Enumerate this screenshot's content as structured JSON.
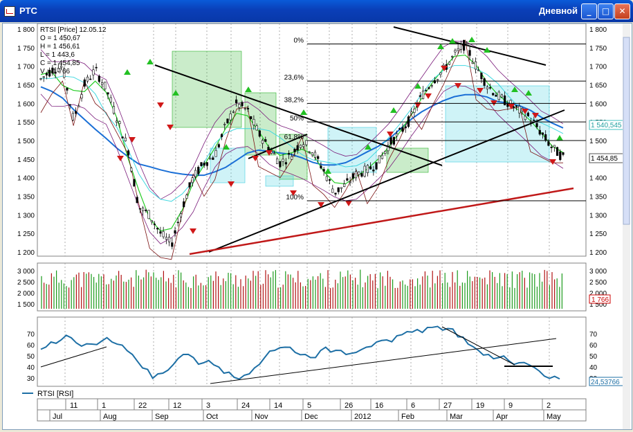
{
  "window": {
    "title": "РТС",
    "timeframe": "Дневной",
    "buttons": {
      "minimize": "_",
      "maximize": "□",
      "close": "✕"
    }
  },
  "info": {
    "name": "RTSI [Price] 12.05.12",
    "lines": [
      "O = 1 450,67",
      "H = 1 456,61",
      "L = 1 443,6",
      "C = 1 454,85",
      "V = 1 766"
    ]
  },
  "fib_labels": [
    "0%",
    "23,6%",
    "38,2%",
    "50%",
    "61,8%",
    "100%"
  ],
  "price_tags": {
    "level": "1 540,545",
    "last": "1 454,85"
  },
  "volume_tag": "1 766",
  "rsi_tag": "24,53766",
  "legend": {
    "rsi": "RTSI [RSI]"
  },
  "colors": {
    "up": "#1a8a1a",
    "down": "#b01010",
    "cloud": "#2bb52b",
    "ma": "#1a6fd6",
    "rsi": "#1d6fa5"
  },
  "chart_data": [
    {
      "type": "line",
      "title": "RTSI [Price] 12.05.12",
      "ylim": [
        1200,
        1800
      ],
      "yticks": [
        1200,
        1250,
        1300,
        1350,
        1400,
        1450,
        1500,
        1550,
        1600,
        1650,
        1700,
        1750,
        1800
      ],
      "ytick_labels": [
        "1 200",
        "1 250",
        "1 300",
        "1 350",
        "1 400",
        "1 450",
        "1 500",
        "1 550",
        "1 600",
        "1 650",
        "1 700",
        "1 750",
        "1 800"
      ],
      "x_day_labels": [
        "11",
        "1",
        "22",
        "12",
        "3",
        "24",
        "14",
        "5",
        "26",
        "16",
        "6",
        "27",
        "19",
        "9",
        "2"
      ],
      "x_month_labels": [
        "Jul",
        "Aug",
        "Sep",
        "Oct",
        "Nov",
        "Dec",
        "2012",
        "Feb",
        "Mar",
        "Apr",
        "May"
      ],
      "series": [
        {
          "values": [
            1665,
            1690,
            1700,
            1555,
            1650,
            1690,
            1640,
            1560,
            1480,
            1320,
            1300,
            1250,
            1220,
            1320,
            1400,
            1440,
            1460,
            1540,
            1600,
            1580,
            1520,
            1480,
            1440,
            1460,
            1500,
            1470,
            1420,
            1360,
            1380,
            1410,
            1420,
            1440,
            1490,
            1520,
            1560,
            1620,
            1660,
            1690,
            1730,
            1760,
            1700,
            1650,
            1620,
            1600,
            1580,
            1560,
            1520,
            1480,
            1455
          ]
        }
      ],
      "fib_levels": [
        {
          "label": "0%",
          "value": 1760
        },
        {
          "label": "23,6%",
          "value": 1660
        },
        {
          "label": "38,2%",
          "value": 1600
        },
        {
          "label": "50%",
          "value": 1550
        },
        {
          "label": "61,8%",
          "value": 1500
        },
        {
          "label": "100%",
          "value": 1338
        }
      ],
      "last_value": 1454.85,
      "tagged_level": 1540.545
    },
    {
      "type": "bar",
      "title": "",
      "ylim": [
        1500,
        3000
      ],
      "ytick_labels": [
        "3 000",
        "2 500",
        "2 000",
        "1 500"
      ],
      "last_value": 1766
    },
    {
      "type": "line",
      "title": "RTSI [RSI]",
      "ylim": [
        20,
        80
      ],
      "ytick_labels": [
        "70",
        "60",
        "50",
        "40",
        "30"
      ],
      "series": [
        {
          "name": "RTSI [RSI]",
          "values": [
            53,
            60,
            62,
            64,
            56,
            58,
            61,
            60,
            57,
            48,
            35,
            25,
            30,
            38,
            48,
            45,
            40,
            38,
            30,
            26,
            28,
            35,
            45,
            52,
            55,
            50,
            48,
            45,
            55,
            52,
            48,
            50,
            55,
            60,
            62,
            66,
            70,
            72,
            74,
            75,
            73,
            65,
            58,
            52,
            48,
            45,
            42,
            40,
            38,
            32,
            25,
            24.5
          ]
        }
      ],
      "last_value": 24.53766
    }
  ]
}
